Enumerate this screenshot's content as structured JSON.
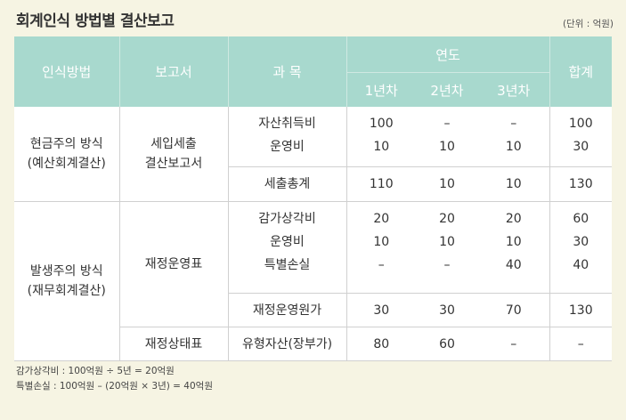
{
  "title": "회계인식 방법별 결산보고",
  "unit": "(단위 : 억원)",
  "headers": {
    "method": "인식방법",
    "report": "보고서",
    "item": "과 목",
    "year": "연도",
    "y1": "1년차",
    "y2": "2년차",
    "y3": "3년차",
    "total": "합계"
  },
  "cash": {
    "method_line1": "현금주의 방식",
    "method_line2": "(예산회계결산)",
    "report_line1": "세입세출",
    "report_line2": "결산보고서",
    "rows": [
      {
        "item": "자산취득비",
        "y1": "100",
        "y2": "–",
        "y3": "–",
        "total": "100"
      },
      {
        "item": "운영비",
        "y1": "10",
        "y2": "10",
        "y3": "10",
        "total": "30"
      }
    ],
    "sum": {
      "item": "세출총계",
      "y1": "110",
      "y2": "10",
      "y3": "10",
      "total": "130"
    }
  },
  "accrual": {
    "method_line1": "발생주의 방식",
    "method_line2": "(재무회계결산)",
    "report1": "재정운영표",
    "rows": [
      {
        "item": "감가상각비",
        "y1": "20",
        "y2": "20",
        "y3": "20",
        "total": "60"
      },
      {
        "item": "운영비",
        "y1": "10",
        "y2": "10",
        "y3": "10",
        "total": "30"
      },
      {
        "item": "특별손실",
        "y1": "–",
        "y2": "–",
        "y3": "40",
        "total": "40"
      }
    ],
    "sum": {
      "item": "재정운영원가",
      "y1": "30",
      "y2": "30",
      "y3": "70",
      "total": "130"
    },
    "report2": "재정상태표",
    "asset": {
      "item": "유형자산(장부가)",
      "y1": "80",
      "y2": "60",
      "y3": "–",
      "total": "–"
    }
  },
  "notes": {
    "line1": "감가상각비 : 100억원 ÷ 5년 = 20억원",
    "line2": "특별손실 : 100억원 – (20억원 × 3년) = 40억원"
  }
}
